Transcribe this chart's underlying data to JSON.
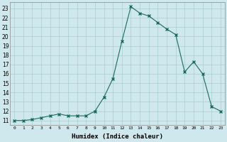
{
  "x": [
    0,
    1,
    2,
    3,
    4,
    5,
    6,
    7,
    8,
    9,
    10,
    11,
    12,
    13,
    14,
    15,
    16,
    17,
    18,
    19,
    20,
    21,
    22,
    23
  ],
  "y": [
    11.0,
    11.0,
    11.1,
    11.3,
    11.5,
    11.7,
    11.5,
    11.5,
    11.5,
    12.0,
    13.5,
    15.5,
    19.5,
    23.2,
    22.5,
    22.2,
    21.5,
    20.8,
    20.2,
    16.2,
    17.3,
    16.0,
    12.5,
    12.0
  ],
  "line_color": "#1a6b5a",
  "marker": "x",
  "marker_size": 3,
  "bg_color": "#cee8ee",
  "grid_color": "#aacccc",
  "xlabel": "Humidex (Indice chaleur)",
  "yticks": [
    11,
    12,
    13,
    14,
    15,
    16,
    17,
    18,
    19,
    20,
    21,
    22,
    23
  ],
  "xtick_labels": [
    "0",
    "1",
    "2",
    "3",
    "4",
    "5",
    "6",
    "7",
    "8",
    "9",
    "1011",
    "1213",
    "1415",
    "1617",
    "1819",
    "2021",
    "2223"
  ],
  "xlim": [
    -0.5,
    23.5
  ],
  "ylim": [
    10.5,
    23.7
  ]
}
